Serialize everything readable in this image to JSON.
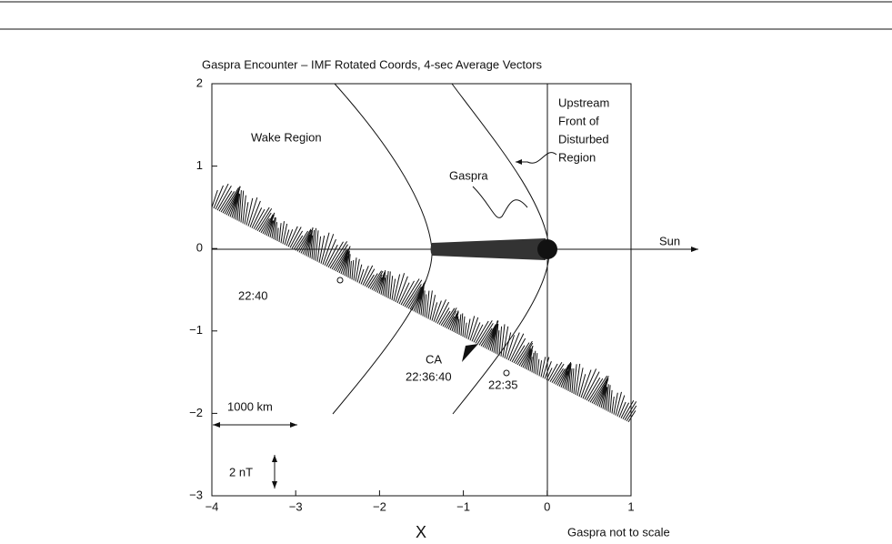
{
  "chart_data": {
    "type": "vector",
    "title": "Gaspra Encounter  –  IMF Rotated Coords, 4-sec Average Vectors",
    "xlabel": "X",
    "xlim": [
      -4,
      1
    ],
    "ylim": [
      -3,
      2
    ],
    "xticks": [
      {
        "value": -4,
        "label": "−4"
      },
      {
        "value": -3,
        "label": "−3"
      },
      {
        "value": -2,
        "label": "−2"
      },
      {
        "value": -1,
        "label": "−1"
      },
      0,
      1
    ],
    "yticks": [
      {
        "value": -3,
        "label": "−3"
      },
      {
        "value": -2,
        "label": "−2"
      },
      {
        "value": -1,
        "label": "−1"
      },
      0,
      1,
      2
    ],
    "annotations": {
      "wake": "Wake Region",
      "upstream": [
        "Upstream",
        "Front of",
        "Disturbed",
        "Region"
      ],
      "gaspra": "Gaspra",
      "sun": "Sun",
      "t1": "22:40",
      "ca": "CA",
      "ca_time": "22:36:40",
      "t2": "22:35",
      "scale_km": "1000 km",
      "scale_nt": "2 nT",
      "note": "Gaspra not to scale"
    }
  }
}
